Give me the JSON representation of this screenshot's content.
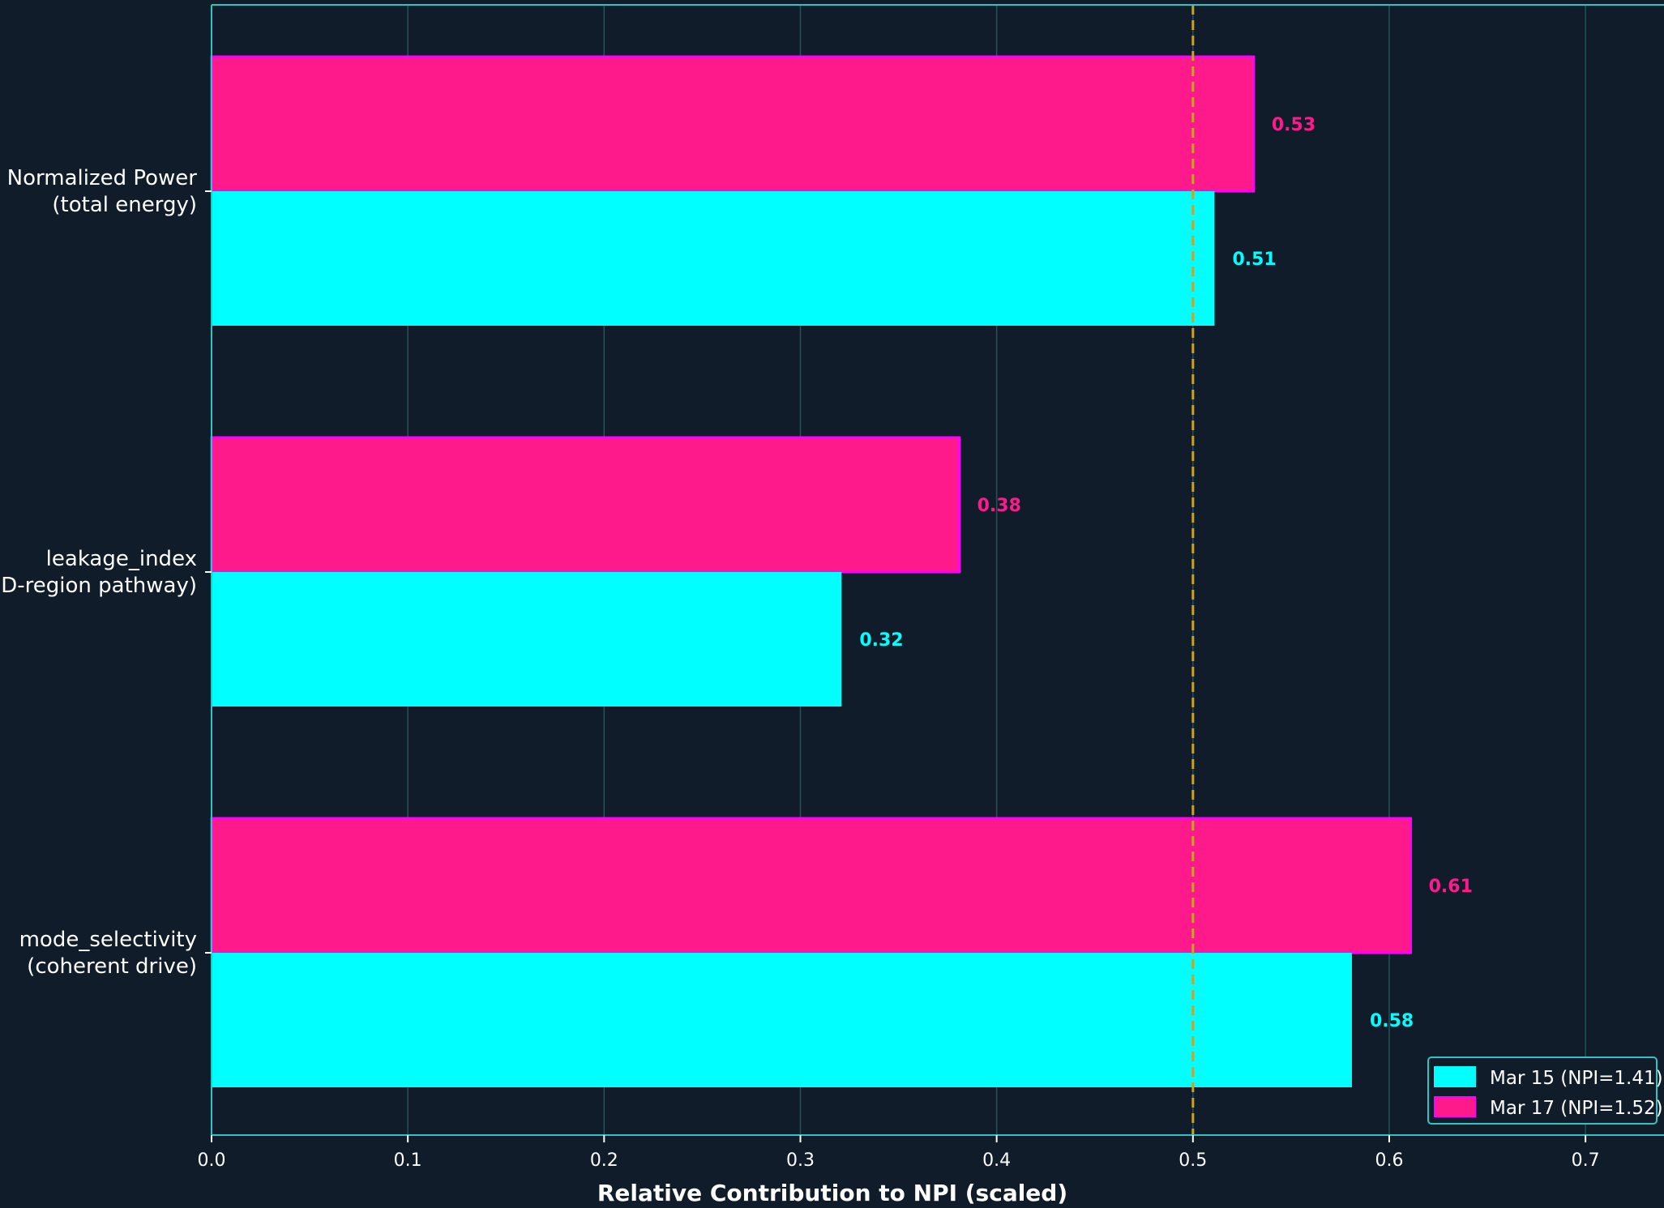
{
  "chart_data": {
    "type": "bar",
    "orientation": "horizontal",
    "xlabel": "Relative Contribution to NPI (scaled)",
    "xlim": [
      0,
      0.74
    ],
    "xticks": [
      "0.0",
      "0.1",
      "0.2",
      "0.3",
      "0.4",
      "0.5",
      "0.6",
      "0.7"
    ],
    "categories": [
      [
        "Normalized Power",
        "(total energy)"
      ],
      [
        "leakage_index",
        "(D-region pathway)"
      ],
      [
        "mode_selectivity",
        "(coherent drive)"
      ]
    ],
    "series": [
      {
        "name": "Mar 15 (NPI=1.41)",
        "color": "#00ffff",
        "values": [
          0.511,
          0.321,
          0.581
        ],
        "labels": [
          "0.51",
          "0.32",
          "0.58"
        ]
      },
      {
        "name": "Mar 17 (NPI=1.52)",
        "color": "#ff1a8c",
        "edge_color": "#ff00ff",
        "values": [
          0.531,
          0.381,
          0.611
        ],
        "labels": [
          "0.53",
          "0.38",
          "0.61"
        ]
      }
    ],
    "reference_line": {
      "x": 0.5,
      "style": "dashed",
      "color": "#c9a227"
    },
    "grid": "vertical",
    "legend": "bottom-right",
    "colors": {
      "background": "#101c2a",
      "axis": "#2ec4c4",
      "grid": "#1f5458"
    }
  }
}
